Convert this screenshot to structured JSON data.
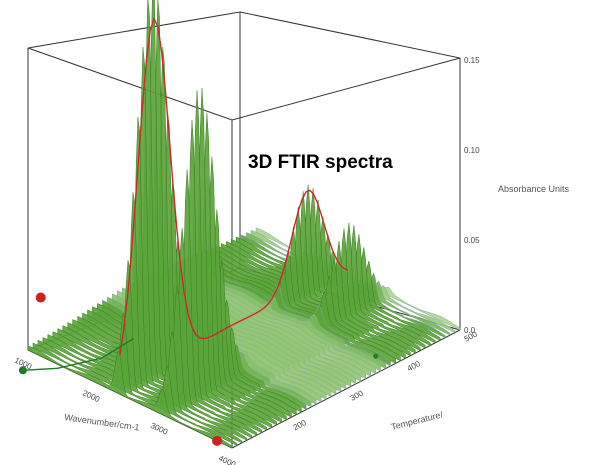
{
  "chart_data": {
    "type": "surface-3d",
    "title": "3D FTIR spectra",
    "xlabel": "Wavenumber/cm-1",
    "ylabel": "Temperature/",
    "zlabel": "Absorbance Units",
    "x_ticks": [
      "1000",
      "2000",
      "3000",
      "4000"
    ],
    "y_ticks": [
      "200",
      "300",
      "400",
      "500"
    ],
    "z_ticks": [
      "0.0",
      "0.05",
      "0.10",
      "0.15"
    ],
    "x_range": [
      1000,
      4000
    ],
    "y_range": [
      100,
      500
    ],
    "z_range": [
      0,
      0.15
    ],
    "grid": false,
    "peaks": [
      {
        "wavenumber": 2300,
        "temperature": 160,
        "absorbance": 0.108
      },
      {
        "wavenumber": 2350,
        "temperature": 160,
        "absorbance": 0.16
      },
      {
        "wavenumber": 2950,
        "temperature": 165,
        "absorbance": 0.097
      },
      {
        "wavenumber": 3000,
        "temperature": 165,
        "absorbance": 0.11
      },
      {
        "wavenumber": 2350,
        "temperature": 430,
        "absorbance": 0.06
      },
      {
        "wavenumber": 2950,
        "temperature": 430,
        "absorbance": 0.048
      }
    ],
    "colors": {
      "surface_top": "#5aa53a",
      "surface_low": "#c8e8a8",
      "baseline": "#a9bccc",
      "trace": "#cc2a2a",
      "marker": "#d02020",
      "green_marker": "#1f7a2a"
    }
  }
}
